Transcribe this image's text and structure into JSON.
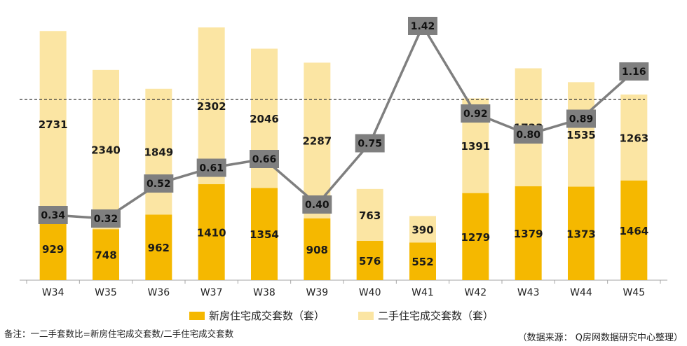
{
  "chart_data": {
    "type": "bar",
    "stacked": true,
    "categories": [
      "W34",
      "W35",
      "W36",
      "W37",
      "W38",
      "W39",
      "W40",
      "W41",
      "W42",
      "W43",
      "W44",
      "W45"
    ],
    "series": [
      {
        "name": "新房住宅成交套数（套）",
        "color": "#F5B800",
        "values": [
          929,
          748,
          962,
          1410,
          1354,
          908,
          576,
          552,
          1279,
          1379,
          1373,
          1464
        ]
      },
      {
        "name": "二手住宅成交套数（套）",
        "color": "#FBE5A3",
        "values": [
          2731,
          2340,
          1849,
          2302,
          2046,
          2287,
          763,
          390,
          1391,
          1733,
          1535,
          1263
        ]
      }
    ],
    "ratio_line": {
      "color": "#7F7F7F",
      "values": [
        0.34,
        0.32,
        0.52,
        0.61,
        0.66,
        0.4,
        0.75,
        1.42,
        0.92,
        0.8,
        0.89,
        1.16
      ],
      "labels": [
        "0.34",
        "0.32",
        "0.52",
        "0.61",
        "0.66",
        "0.40",
        "0.75",
        "1.42",
        "0.92",
        "0.80",
        "0.89",
        "1.16"
      ],
      "reference_line": 1.0
    },
    "ylim": [
      0,
      4000
    ],
    "ratio_ylim": [
      0,
      1.5
    ]
  },
  "note": "备注：一二手套数比=新房住宅成交套数/二手住宅成交套数",
  "source": "（数据来源： Q房网数据研究中心整理）"
}
